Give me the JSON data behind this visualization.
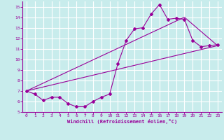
{
  "xlabel": "Windchill (Refroidissement éolien,°C)",
  "background_color": "#c8ecec",
  "line_color": "#990099",
  "grid_color": "#ffffff",
  "xlim": [
    -0.5,
    23.5
  ],
  "ylim": [
    5,
    15.5
  ],
  "xticks": [
    0,
    1,
    2,
    3,
    4,
    5,
    6,
    7,
    8,
    9,
    10,
    11,
    12,
    13,
    14,
    15,
    16,
    17,
    18,
    19,
    20,
    21,
    22,
    23
  ],
  "yticks": [
    5,
    6,
    7,
    8,
    9,
    10,
    11,
    12,
    13,
    14,
    15
  ],
  "line1_x": [
    0,
    1,
    2,
    3,
    4,
    5,
    6,
    7,
    8,
    9,
    10,
    11,
    12,
    13,
    14,
    15,
    16,
    17,
    18,
    19,
    20,
    21,
    22,
    23
  ],
  "line1_y": [
    7.0,
    6.7,
    6.1,
    6.4,
    6.4,
    5.8,
    5.5,
    5.5,
    6.0,
    6.4,
    6.7,
    9.6,
    11.8,
    12.9,
    13.0,
    14.3,
    15.2,
    13.8,
    13.9,
    13.8,
    11.8,
    11.2,
    11.3,
    11.4
  ],
  "line2_x": [
    0,
    23
  ],
  "line2_y": [
    7.0,
    11.3
  ],
  "line3_x": [
    0,
    19,
    23
  ],
  "line3_y": [
    7.0,
    14.0,
    11.3
  ]
}
